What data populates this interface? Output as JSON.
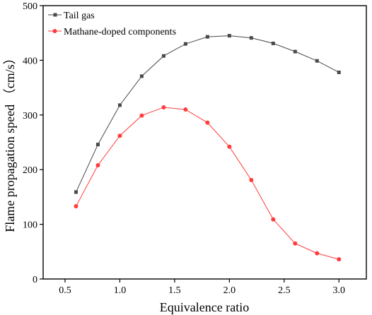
{
  "chart_data": {
    "type": "line",
    "xlabel": "Equivalence ratio",
    "ylabel": "Flame propagation speed （cm/s）",
    "xlim": [
      0.3,
      3.25
    ],
    "ylim": [
      0,
      500
    ],
    "xticks": [
      0.5,
      1.0,
      1.5,
      2.0,
      2.5,
      3.0
    ],
    "xtick_labels": [
      "0.5",
      "1.0",
      "1.5",
      "2.0",
      "2.5",
      "3.0"
    ],
    "yticks": [
      0,
      100,
      200,
      300,
      400,
      500
    ],
    "ytick_labels": [
      "0",
      "100",
      "200",
      "300",
      "400",
      "500"
    ],
    "grid": false,
    "legend_position": "top-left",
    "series": [
      {
        "name": "Tail gas",
        "color": "#4a4a4a",
        "marker": "square",
        "x": [
          0.6,
          0.8,
          1.0,
          1.2,
          1.4,
          1.6,
          1.8,
          2.0,
          2.2,
          2.4,
          2.6,
          2.8,
          3.0
        ],
        "y": [
          159,
          246,
          318,
          371,
          408,
          430,
          443,
          445,
          441,
          431,
          416,
          399,
          378
        ]
      },
      {
        "name": "Mathane-doped components",
        "color": "#ff3b3b",
        "marker": "circle",
        "x": [
          0.6,
          0.8,
          1.0,
          1.2,
          1.4,
          1.6,
          1.8,
          2.0,
          2.2,
          2.4,
          2.6,
          2.8,
          3.0
        ],
        "y": [
          133,
          208,
          262,
          299,
          314,
          310,
          286,
          242,
          181,
          109,
          65,
          47,
          36
        ]
      }
    ]
  }
}
